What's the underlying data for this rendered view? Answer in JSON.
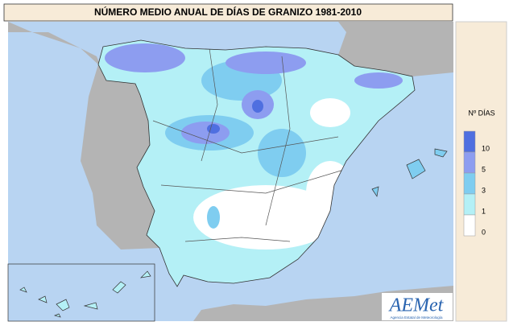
{
  "title": "NÚMERO MEDIO ANUAL DE DÍAS DE GRANIZO 1981-2010",
  "legend": {
    "title": "Nº DÍAS",
    "items": [
      {
        "label": 10,
        "color": "#4f6fe0"
      },
      {
        "label": 5,
        "color": "#8d9df0"
      },
      {
        "label": 3,
        "color": "#7fcdf0"
      },
      {
        "label": 1,
        "color": "#b4f0f6"
      },
      {
        "label": 0,
        "color": "#ffffff"
      }
    ]
  },
  "logo": {
    "name": "AEMet",
    "caption": "Agencia Estatal de Meteorología"
  }
}
